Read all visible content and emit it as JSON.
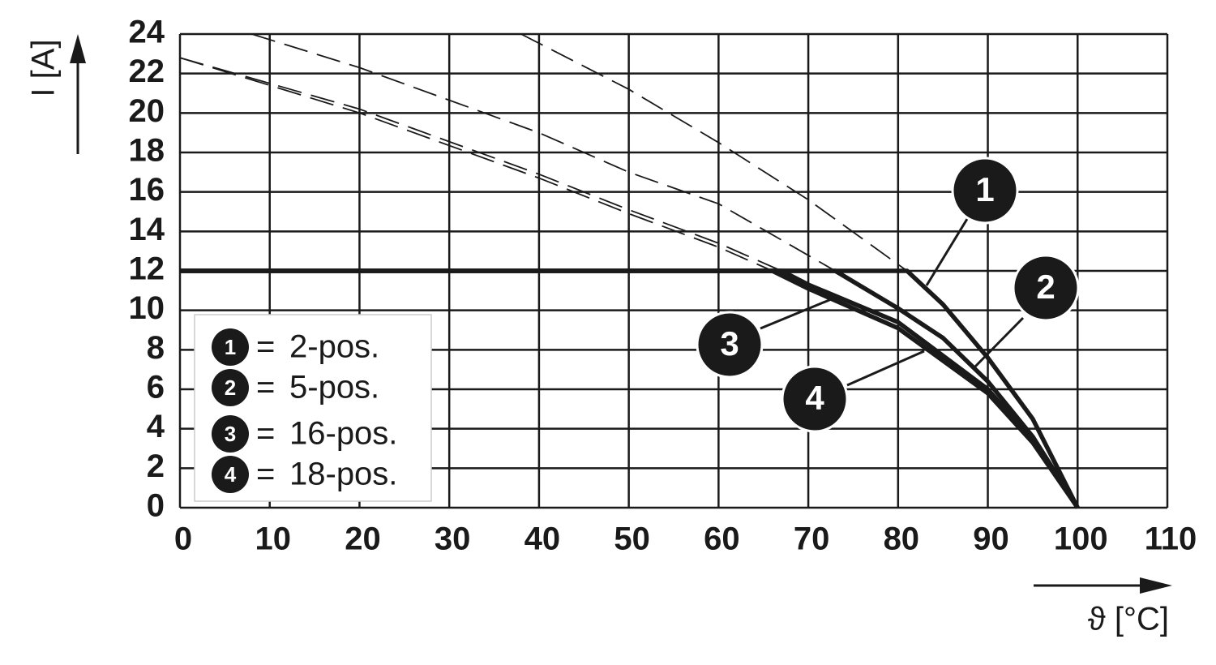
{
  "chart_data": {
    "type": "line",
    "xlabel": "ϑ [°C]",
    "ylabel": "I [A]",
    "xlim": [
      0,
      110
    ],
    "xticks": [
      0,
      10,
      20,
      30,
      40,
      50,
      60,
      70,
      80,
      90,
      100,
      110
    ],
    "ylim": [
      0,
      24
    ],
    "yticks": [
      0,
      2,
      4,
      6,
      8,
      10,
      12,
      14,
      16,
      18,
      20,
      22,
      24
    ],
    "grid": true,
    "legend": "lower left",
    "legend_separator": "=",
    "series": [
      {
        "name": "2-pos.",
        "marker": "1",
        "color": "#1a1a1a",
        "x": [
          0,
          81,
          85,
          90,
          95,
          100
        ],
        "values": [
          12,
          12,
          10.3,
          7.6,
          4.5,
          0
        ],
        "extension": {
          "x": [
            38,
            50,
            60,
            70,
            81
          ],
          "values": [
            24,
            21.2,
            18.5,
            15.6,
            12
          ]
        }
      },
      {
        "name": "5-pos.",
        "marker": "2",
        "color": "#1a1a1a",
        "x": [
          0,
          73,
          80,
          85,
          90,
          95,
          100
        ],
        "values": [
          12,
          12,
          10.1,
          8.6,
          6.4,
          3.6,
          0
        ],
        "extension": {
          "x": [
            8,
            20,
            40,
            50,
            60,
            73
          ],
          "values": [
            24,
            22.3,
            19.0,
            17.0,
            15.4,
            12
          ]
        }
      },
      {
        "name": "16-pos.",
        "marker": "3",
        "color": "#1a1a1a",
        "x": [
          0,
          67,
          70,
          80,
          90,
          95,
          100
        ],
        "values": [
          12,
          12,
          11.3,
          9.4,
          6.0,
          3.4,
          0
        ],
        "extension": {
          "x": [
            0,
            20,
            40,
            50,
            60,
            67
          ],
          "values": [
            22.8,
            20.2,
            16.9,
            15.1,
            13.4,
            12
          ]
        }
      },
      {
        "name": "18-pos.",
        "marker": "4",
        "color": "#1a1a1a",
        "x": [
          0,
          66,
          70,
          80,
          90,
          95,
          100
        ],
        "values": [
          12,
          12,
          11.1,
          9.1,
          5.8,
          3.3,
          0
        ],
        "extension": {
          "x": [
            0,
            20,
            40,
            50,
            60,
            66
          ],
          "values": [
            22.8,
            20.0,
            16.7,
            14.9,
            13.2,
            12
          ]
        }
      }
    ]
  }
}
